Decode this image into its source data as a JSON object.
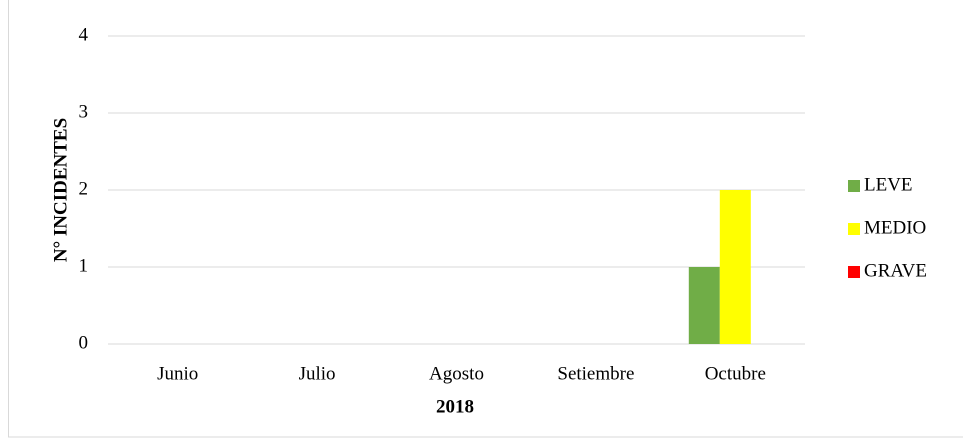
{
  "chart_data": {
    "type": "bar",
    "categories": [
      "Junio",
      "Julio",
      "Agosto",
      "Setiembre",
      "Octubre"
    ],
    "series": [
      {
        "name": "LEVE",
        "color": "#70ad47",
        "values": [
          0,
          0,
          0,
          0,
          1
        ]
      },
      {
        "name": "MEDIO",
        "color": "#ffff00",
        "values": [
          0,
          0,
          0,
          0,
          2
        ]
      },
      {
        "name": "GRAVE",
        "color": "#ff0000",
        "values": [
          0,
          0,
          0,
          0,
          0
        ]
      }
    ],
    "y_label": "N° INCIDENTES",
    "x_label": "2018",
    "ylim": [
      0,
      4
    ],
    "yticks": [
      0,
      1,
      2,
      3,
      4
    ],
    "grid": true,
    "legend": "right"
  }
}
